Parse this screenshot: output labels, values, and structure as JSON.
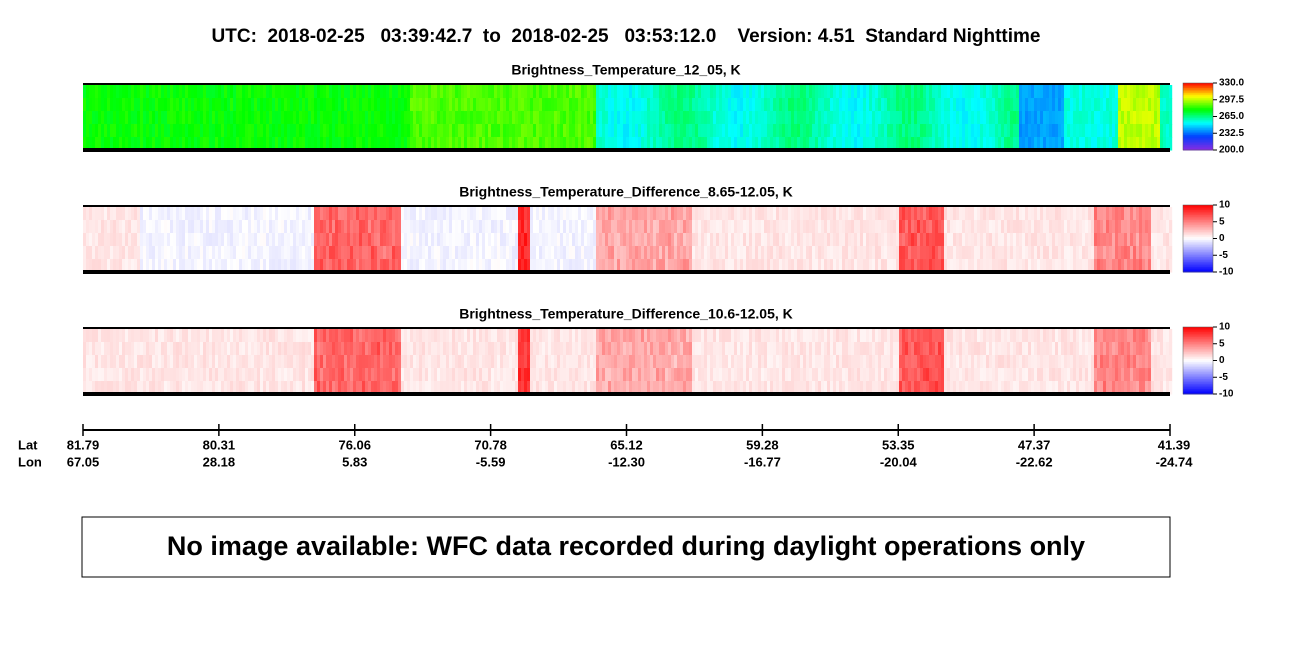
{
  "title": "UTC:  2018-02-25   03:39:42.7  to  2018-02-25   03:53:12.0    Version: 4.51  Standard Nighttime",
  "panels": [
    {
      "title": "Brightness_Temperature_12_05, K",
      "colormap": "rainbow",
      "colorbar_ticks": [
        {
          "value": 330,
          "label": "330.0"
        },
        297.5,
        {
          "value": 265,
          "label": "265.0"
        },
        232.5,
        {
          "value": 200,
          "label": "200.0"
        }
      ]
    },
    {
      "title": "Brightness_Temperature_Difference_8.65-12.05, K",
      "colormap": "diverging",
      "colorbar_ticks": [
        10,
        5,
        0,
        -5,
        -10
      ]
    },
    {
      "title": "Brightness_Temperature_Difference_10.6-12.05, K",
      "colormap": "diverging",
      "colorbar_ticks": [
        10,
        5,
        0,
        -5,
        -10
      ]
    }
  ],
  "axis": {
    "lat_label": "Lat",
    "lon_label": "Lon",
    "lat": [
      81.79,
      80.31,
      76.06,
      70.78,
      65.12,
      59.28,
      53.35,
      47.37,
      41.39
    ],
    "lon": [
      67.05,
      28.18,
      5.83,
      -5.59,
      {
        "value": -12.3,
        "label": "-12.30"
      },
      -16.77,
      -20.04,
      -22.62,
      -24.74
    ]
  },
  "notice": "No image available: WFC data recorded during daylight operations only"
}
